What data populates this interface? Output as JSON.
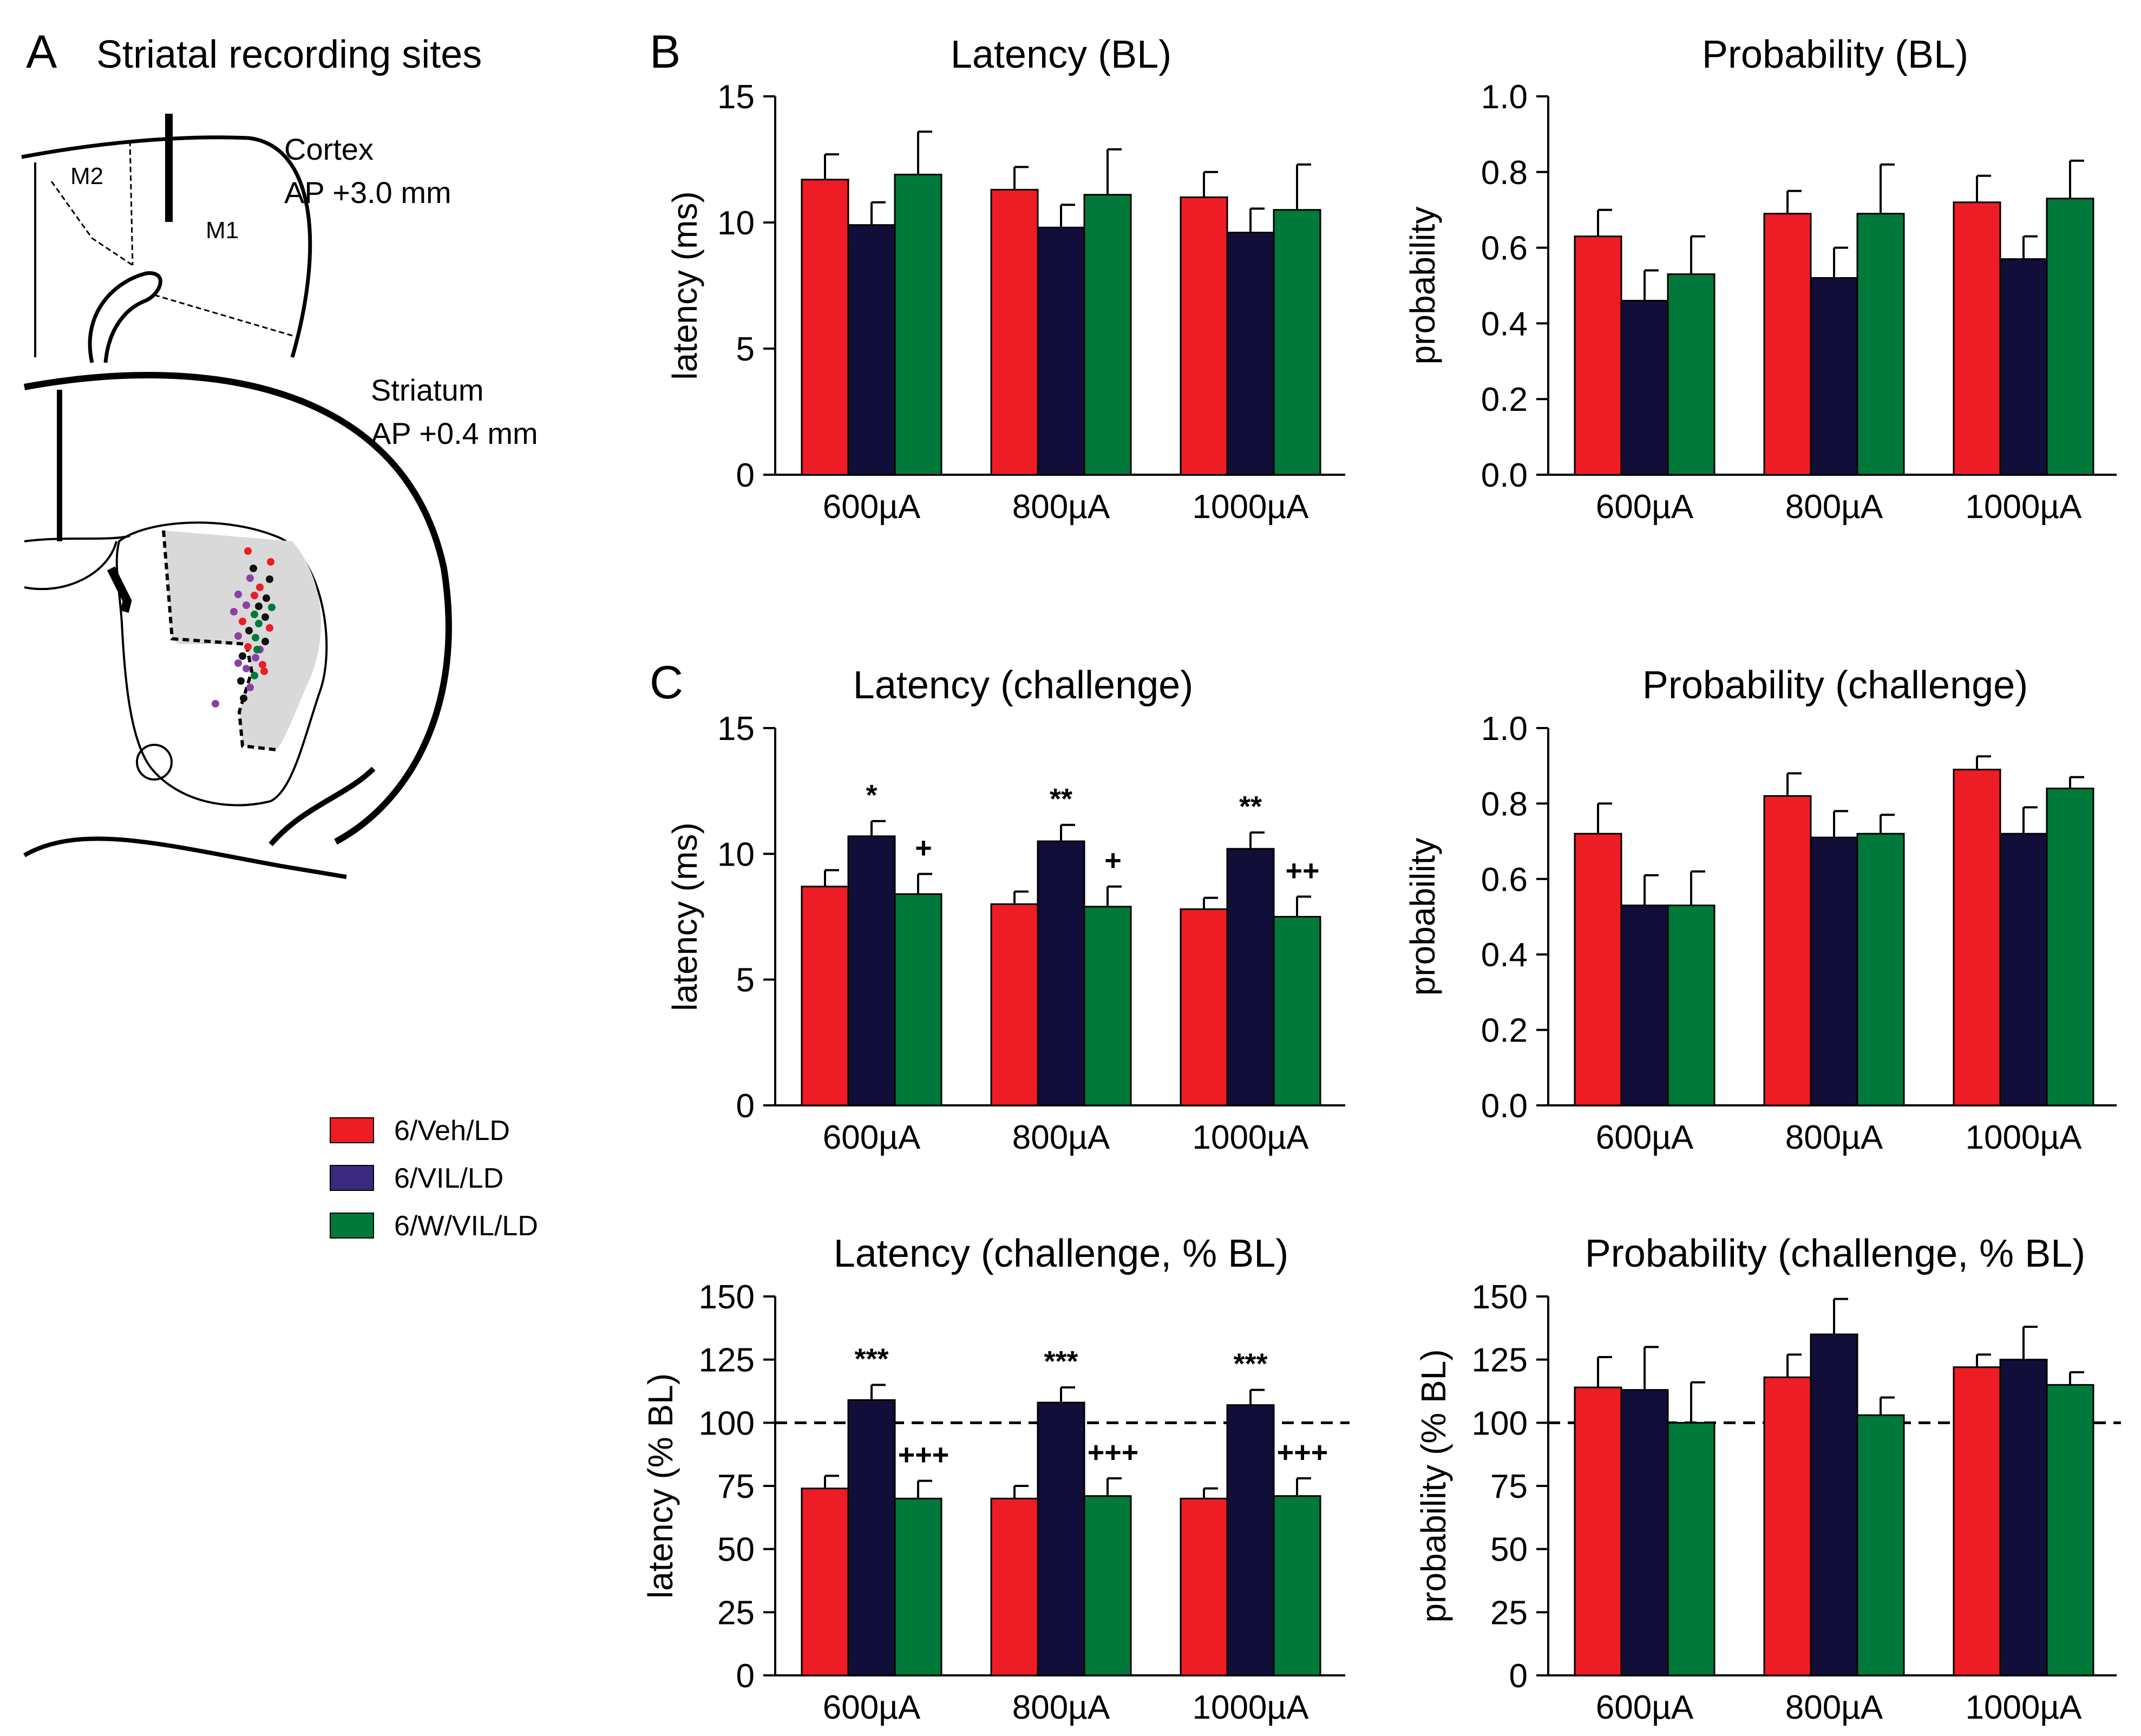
{
  "panel_letters": {
    "a": "A",
    "b": "B",
    "c": "C"
  },
  "panel_a": {
    "title": "Striatal recording sites",
    "cortex_label": "Cortex",
    "cortex_ap": "AP +3.0 mm",
    "m1": "M1",
    "m2": "M2",
    "striatum_label": "Striatum",
    "striatum_ap": "AP +0.4 mm"
  },
  "legend": [
    {
      "label": "6/Veh/LD",
      "color": "#ee1c24"
    },
    {
      "label": "6/VIL/LD",
      "color": "#3a2a7d"
    },
    {
      "label": "6/W/VIL/LD",
      "color": "#00793a"
    }
  ],
  "colors": {
    "veh": "#ee1c24",
    "vil": "#120e3a",
    "wvil": "#00793a",
    "site_purple": "#8e3fa6",
    "site_black": "#111111"
  },
  "chart_data": [
    {
      "id": "lat_bl",
      "type": "bar",
      "title": "Latency (BL)",
      "ylabel": "latency (ms)",
      "categories": [
        "600µA",
        "800µA",
        "1000µA"
      ],
      "ylim": [
        0,
        15
      ],
      "yticks": [
        0,
        5,
        10,
        15
      ],
      "ytick_labels": [
        "0",
        "5",
        "10",
        "15"
      ],
      "series": [
        {
          "name": "6/Veh/LD",
          "values": [
            11.7,
            11.3,
            11.0
          ],
          "errors": [
            1.0,
            0.9,
            1.0
          ]
        },
        {
          "name": "6/VIL/LD",
          "values": [
            9.9,
            9.8,
            9.6
          ],
          "errors": [
            0.9,
            0.9,
            0.95
          ]
        },
        {
          "name": "6/W/VIL/LD",
          "values": [
            11.9,
            11.1,
            10.5
          ],
          "errors": [
            1.7,
            1.8,
            1.8
          ]
        }
      ],
      "reference_line": null,
      "annotations": []
    },
    {
      "id": "prob_bl",
      "type": "bar",
      "title": "Probability (BL)",
      "ylabel": "probability",
      "categories": [
        "600µA",
        "800µA",
        "1000µA"
      ],
      "ylim": [
        0,
        1
      ],
      "yticks": [
        0,
        0.2,
        0.4,
        0.6,
        0.8,
        1.0
      ],
      "ytick_labels": [
        "0.0",
        "0.2",
        "0.4",
        "0.6",
        "0.8",
        "1.0"
      ],
      "series": [
        {
          "name": "6/Veh/LD",
          "values": [
            0.63,
            0.69,
            0.72
          ],
          "errors": [
            0.07,
            0.06,
            0.07
          ]
        },
        {
          "name": "6/VIL/LD",
          "values": [
            0.46,
            0.52,
            0.57
          ],
          "errors": [
            0.08,
            0.08,
            0.06
          ]
        },
        {
          "name": "6/W/VIL/LD",
          "values": [
            0.53,
            0.69,
            0.73
          ],
          "errors": [
            0.1,
            0.13,
            0.1
          ]
        }
      ],
      "reference_line": null,
      "annotations": []
    },
    {
      "id": "lat_ch",
      "type": "bar",
      "title": "Latency (challenge)",
      "ylabel": "latency (ms)",
      "categories": [
        "600µA",
        "800µA",
        "1000µA"
      ],
      "ylim": [
        0,
        15
      ],
      "yticks": [
        0,
        5,
        10,
        15
      ],
      "ytick_labels": [
        "0",
        "5",
        "10",
        "15"
      ],
      "series": [
        {
          "name": "6/Veh/LD",
          "values": [
            8.7,
            8.0,
            7.8
          ],
          "errors": [
            0.65,
            0.5,
            0.45
          ]
        },
        {
          "name": "6/VIL/LD",
          "values": [
            10.7,
            10.5,
            10.2
          ],
          "errors": [
            0.6,
            0.65,
            0.65
          ]
        },
        {
          "name": "6/W/VIL/LD",
          "values": [
            8.4,
            7.9,
            7.5
          ],
          "errors": [
            0.8,
            0.8,
            0.8
          ]
        }
      ],
      "reference_line": null,
      "annotations": [
        {
          "category": 0,
          "series": 1,
          "text": "*"
        },
        {
          "category": 0,
          "series": 2,
          "text": "+"
        },
        {
          "category": 1,
          "series": 1,
          "text": "**"
        },
        {
          "category": 1,
          "series": 2,
          "text": "+"
        },
        {
          "category": 2,
          "series": 1,
          "text": "**"
        },
        {
          "category": 2,
          "series": 2,
          "text": "++"
        }
      ]
    },
    {
      "id": "prob_ch",
      "type": "bar",
      "title": "Probability (challenge)",
      "ylabel": "probability",
      "categories": [
        "600µA",
        "800µA",
        "1000µA"
      ],
      "ylim": [
        0,
        1
      ],
      "yticks": [
        0,
        0.2,
        0.4,
        0.6,
        0.8,
        1.0
      ],
      "ytick_labels": [
        "0.0",
        "0.2",
        "0.4",
        "0.6",
        "0.8",
        "1.0"
      ],
      "series": [
        {
          "name": "6/Veh/LD",
          "values": [
            0.72,
            0.82,
            0.89
          ],
          "errors": [
            0.08,
            0.06,
            0.035
          ]
        },
        {
          "name": "6/VIL/LD",
          "values": [
            0.53,
            0.71,
            0.72
          ],
          "errors": [
            0.08,
            0.07,
            0.07
          ]
        },
        {
          "name": "6/W/VIL/LD",
          "values": [
            0.53,
            0.72,
            0.84
          ],
          "errors": [
            0.09,
            0.05,
            0.03
          ]
        }
      ],
      "reference_line": null,
      "annotations": []
    },
    {
      "id": "lat_pct",
      "type": "bar",
      "title": "Latency (challenge, % BL)",
      "ylabel": "latency (% BL)",
      "categories": [
        "600µA",
        "800µA",
        "1000µA"
      ],
      "ylim": [
        0,
        150
      ],
      "yticks": [
        0,
        25,
        50,
        75,
        100,
        125,
        150
      ],
      "ytick_labels": [
        "0",
        "25",
        "50",
        "75",
        "100",
        "125",
        "150"
      ],
      "series": [
        {
          "name": "6/Veh/LD",
          "values": [
            74,
            70,
            70
          ],
          "errors": [
            5,
            5,
            4
          ]
        },
        {
          "name": "6/VIL/LD",
          "values": [
            109,
            108,
            107
          ],
          "errors": [
            6,
            6,
            6
          ]
        },
        {
          "name": "6/W/VIL/LD",
          "values": [
            70,
            71,
            71
          ],
          "errors": [
            7,
            7,
            7
          ]
        }
      ],
      "reference_line": 100,
      "annotations": [
        {
          "category": 0,
          "series": 1,
          "text": "***"
        },
        {
          "category": 0,
          "series": 2,
          "text": "+++"
        },
        {
          "category": 1,
          "series": 1,
          "text": "***"
        },
        {
          "category": 1,
          "series": 2,
          "text": "+++"
        },
        {
          "category": 2,
          "series": 1,
          "text": "***"
        },
        {
          "category": 2,
          "series": 2,
          "text": "+++"
        }
      ]
    },
    {
      "id": "prob_pct",
      "type": "bar",
      "title": "Probability (challenge, % BL)",
      "ylabel": "probability (% BL)",
      "categories": [
        "600µA",
        "800µA",
        "1000µA"
      ],
      "ylim": [
        0,
        150
      ],
      "yticks": [
        0,
        25,
        50,
        75,
        100,
        125,
        150
      ],
      "ytick_labels": [
        "0",
        "25",
        "50",
        "75",
        "100",
        "125",
        "150"
      ],
      "series": [
        {
          "name": "6/Veh/LD",
          "values": [
            114,
            118,
            122
          ],
          "errors": [
            12,
            9,
            5
          ]
        },
        {
          "name": "6/VIL/LD",
          "values": [
            113,
            135,
            125
          ],
          "errors": [
            17,
            14,
            13
          ]
        },
        {
          "name": "6/W/VIL/LD",
          "values": [
            100,
            103,
            115
          ],
          "errors": [
            16,
            7,
            5
          ]
        }
      ],
      "reference_line": 100,
      "annotations": []
    }
  ]
}
